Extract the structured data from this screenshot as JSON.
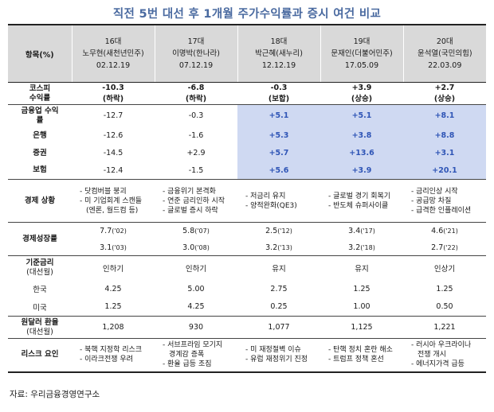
{
  "title": "직전 5번 대선 후 1개월 주가수익률과 증시 여건 비교",
  "header": {
    "item_label": "항목(%)",
    "columns": [
      {
        "term": "16대",
        "name": "노무현(새천년민주)",
        "date": "02.12.19"
      },
      {
        "term": "17대",
        "name": "이명박(한나라)",
        "date": "07.12.19"
      },
      {
        "term": "18대",
        "name": "박근혜(새누리)",
        "date": "12.12.19"
      },
      {
        "term": "19대",
        "name": "문재인(더불어민주)",
        "date": "17.05.09"
      },
      {
        "term": "20대",
        "name": "윤석열(국민의힘)",
        "date": "22.03.09"
      }
    ]
  },
  "kospi": {
    "label_1": "코스피",
    "label_2": "수익률",
    "values": [
      "-10.3",
      "-6.8",
      "-0.3",
      "+3.9",
      "+2.7"
    ],
    "notes": [
      "(하락)",
      "(하락)",
      "(보합)",
      "(상승)",
      "(상승)"
    ]
  },
  "sectors": [
    {
      "label": "금융업 수익률",
      "values": [
        "-12.7",
        "-0.3",
        "+5.1",
        "+5.1",
        "+8.1"
      ]
    },
    {
      "label": "은행",
      "values": [
        "-12.6",
        "-1.6",
        "+5.3",
        "+3.8",
        "+8.8"
      ]
    },
    {
      "label": "증권",
      "values": [
        "-14.5",
        "+2.9",
        "+5.7",
        "+13.6",
        "+3.1"
      ]
    },
    {
      "label": "보험",
      "values": [
        "-12.4",
        "-1.5",
        "+5.6",
        "+3.9",
        "+20.1"
      ]
    }
  ],
  "economy": {
    "label": "경제 상황",
    "items": [
      [
        "- 닷컴버블 붕괴",
        "- 미 기업회계 스캔들",
        "(엔론, 월드컴 등)"
      ],
      [
        "- 금융위기 본격화",
        "- 연준 금리인하 시작",
        "- 글로벌 증시 하락"
      ],
      [
        "- 저금리 유지",
        "- 양적완화(QE3)"
      ],
      [
        "- 글로벌 경기 회복기",
        "- 반도체 슈퍼사이클"
      ],
      [
        "- 금리인상 시작",
        "- 공급망 차질",
        "- 급격한 인플레이션"
      ]
    ]
  },
  "growth": {
    "label": "경제성장률",
    "row1": [
      {
        "v": "7.7",
        "y": "('02)"
      },
      {
        "v": "5.8",
        "y": "('07)"
      },
      {
        "v": "2.5",
        "y": "('12)"
      },
      {
        "v": "3.4",
        "y": "('17)"
      },
      {
        "v": "4.6",
        "y": "('21)"
      }
    ],
    "row2": [
      {
        "v": "3.1",
        "y": "('03)"
      },
      {
        "v": "3.0",
        "y": "('08)"
      },
      {
        "v": "3.2",
        "y": "('13)"
      },
      {
        "v": "3.2",
        "y": "('18)"
      },
      {
        "v": "2.7",
        "y": "('22)"
      }
    ]
  },
  "rate": {
    "label_1": "기준금리",
    "label_2": "(대선월)",
    "direction": [
      "인하기",
      "인하기",
      "유지",
      "유지",
      "인상기"
    ],
    "korea_label": "한국",
    "korea": [
      "4.25",
      "5.00",
      "2.75",
      "1.25",
      "1.25"
    ],
    "us_label": "미국",
    "us": [
      "1.25",
      "4.25",
      "0.25",
      "1.00",
      "0.50"
    ]
  },
  "fx": {
    "label_1": "원달러 환율",
    "label_2": "(대선월)",
    "values": [
      "1,208",
      "930",
      "1,077",
      "1,125",
      "1,221"
    ]
  },
  "risk": {
    "label": "리스크 요인",
    "items": [
      [
        "- 북핵 지정학 리스크",
        "- 이라크전쟁 우려"
      ],
      [
        "- 서브프라임 모기지",
        "경계감 증폭",
        "- 환율 급등 조짐"
      ],
      [
        "- 미 재정절벽 이슈",
        "- 유럽 재정위기 진정"
      ],
      [
        "- 탄핵 정치 혼란 해소",
        "- 트럼프 정책 혼선"
      ],
      [
        "- 러시아 우크라이나",
        "전쟁 개시",
        "- 에너지가격 급등"
      ]
    ]
  },
  "source": "자료: 우리금융경영연구소"
}
